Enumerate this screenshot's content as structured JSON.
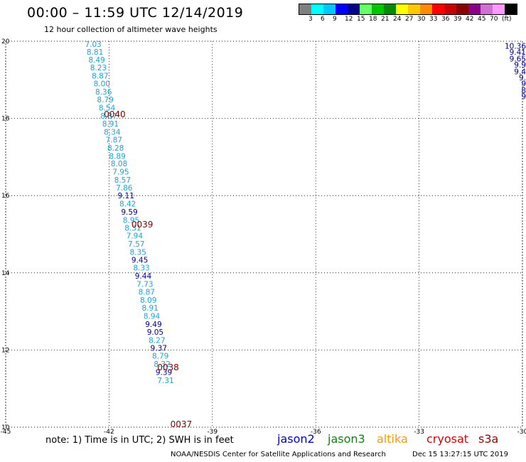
{
  "title": "00:00 – 11:59 UTC 12/14/2019",
  "subtitle": "12 hour collection of altimeter wave heights",
  "colorbar": {
    "colors": [
      "#808080",
      "#00ffff",
      "#00c8ff",
      "#0000ff",
      "#00008b",
      "#66ff66",
      "#00c800",
      "#008c00",
      "#ffff00",
      "#ffc800",
      "#ff8c00",
      "#ff0000",
      "#c80000",
      "#8b0000",
      "#8b008b",
      "#d070d0",
      "#ff99ff",
      "#000000"
    ],
    "labels": [
      "3",
      "6",
      "9",
      "12",
      "15",
      "18",
      "21",
      "24",
      "27",
      "30",
      "33",
      "36",
      "39",
      "42",
      "45",
      "70",
      "(ft)"
    ]
  },
  "map": {
    "lon_ticks": [
      "-45",
      "-42",
      "-39",
      "-36",
      "-33",
      "-30"
    ],
    "lat_ticks": [
      "20",
      "18",
      "16",
      "14",
      "12",
      "10"
    ],
    "lon_range": [
      -45,
      -30
    ],
    "lat_range": [
      10,
      20
    ],
    "light_color": "#1ba3d6",
    "dark_color": "#00008b",
    "time_color": "#800000"
  },
  "track1": [
    {
      "lon": -42.7,
      "lat": 19.93,
      "v": "7.03"
    },
    {
      "lon": -42.65,
      "lat": 19.72,
      "v": "8.81"
    },
    {
      "lon": -42.6,
      "lat": 19.52,
      "v": "8.49"
    },
    {
      "lon": -42.55,
      "lat": 19.32,
      "v": "8.23"
    },
    {
      "lon": -42.5,
      "lat": 19.11,
      "v": "8.87"
    },
    {
      "lon": -42.45,
      "lat": 18.9,
      "v": "8.00"
    },
    {
      "lon": -42.4,
      "lat": 18.69,
      "v": "8.36"
    },
    {
      "lon": -42.35,
      "lat": 18.49,
      "v": "8.79"
    },
    {
      "lon": -42.3,
      "lat": 18.28,
      "v": "8.54"
    },
    {
      "lon": -42.25,
      "lat": 18.07,
      "v": "8.87"
    },
    {
      "lon": -42.2,
      "lat": 17.86,
      "v": "8.91"
    },
    {
      "lon": -42.15,
      "lat": 17.65,
      "v": "8.34"
    },
    {
      "lon": -42.1,
      "lat": 17.45,
      "v": "7.87"
    },
    {
      "lon": -42.05,
      "lat": 17.24,
      "v": "8.28"
    },
    {
      "lon": -42.0,
      "lat": 17.03,
      "v": "8.89"
    },
    {
      "lon": -41.95,
      "lat": 16.83,
      "v": "8.08"
    },
    {
      "lon": -41.9,
      "lat": 16.62,
      "v": "7.95"
    },
    {
      "lon": -41.85,
      "lat": 16.41,
      "v": "8.57"
    },
    {
      "lon": -41.8,
      "lat": 16.21,
      "v": "7.86"
    },
    {
      "lon": -41.75,
      "lat": 16.0,
      "v": "9.11"
    },
    {
      "lon": -41.7,
      "lat": 15.79,
      "v": "8.42"
    },
    {
      "lon": -41.65,
      "lat": 15.58,
      "v": "9.59"
    },
    {
      "lon": -41.6,
      "lat": 15.37,
      "v": "8.95"
    },
    {
      "lon": -41.55,
      "lat": 15.17,
      "v": "8.31"
    },
    {
      "lon": -41.5,
      "lat": 14.96,
      "v": "7.94"
    },
    {
      "lon": -41.45,
      "lat": 14.75,
      "v": "7.57"
    },
    {
      "lon": -41.4,
      "lat": 14.54,
      "v": "8.35"
    },
    {
      "lon": -41.35,
      "lat": 14.34,
      "v": "9.45"
    },
    {
      "lon": -41.3,
      "lat": 14.13,
      "v": "8.33"
    },
    {
      "lon": -41.25,
      "lat": 13.92,
      "v": "9.44"
    },
    {
      "lon": -41.2,
      "lat": 13.71,
      "v": "7.73"
    },
    {
      "lon": -41.15,
      "lat": 13.51,
      "v": "8.87"
    },
    {
      "lon": -41.1,
      "lat": 13.3,
      "v": "8.09"
    },
    {
      "lon": -41.05,
      "lat": 13.09,
      "v": "8.91"
    },
    {
      "lon": -41.0,
      "lat": 12.88,
      "v": "8.94"
    },
    {
      "lon": -40.95,
      "lat": 12.67,
      "v": "9.49"
    },
    {
      "lon": -40.9,
      "lat": 12.47,
      "v": "9.05"
    },
    {
      "lon": -40.85,
      "lat": 12.26,
      "v": "8.27"
    },
    {
      "lon": -40.8,
      "lat": 12.05,
      "v": "9.37"
    },
    {
      "lon": -40.75,
      "lat": 11.85,
      "v": "8.79"
    },
    {
      "lon": -40.7,
      "lat": 11.64,
      "v": "8.32"
    },
    {
      "lon": -40.65,
      "lat": 11.43,
      "v": "9.39"
    },
    {
      "lon": -40.6,
      "lat": 11.22,
      "v": "7.31"
    }
  ],
  "track1_times": [
    {
      "lon": -42.15,
      "lat": 18.1,
      "v": "0040"
    },
    {
      "lon": -41.35,
      "lat": 15.25,
      "v": "0039"
    },
    {
      "lon": -40.6,
      "lat": 11.55,
      "v": "0038"
    },
    {
      "lon": -40.22,
      "lat": 10.07,
      "v": "0037"
    }
  ],
  "track2": [
    {
      "lon": -30.0,
      "lat": 19.88,
      "v": "10.36"
    },
    {
      "lon": -30.0,
      "lat": 19.72,
      "v": "9.41"
    },
    {
      "lon": -30.0,
      "lat": 19.55,
      "v": "9.65"
    },
    {
      "lon": -30.0,
      "lat": 19.39,
      "v": "9.9"
    },
    {
      "lon": -30.0,
      "lat": 19.22,
      "v": "9.4"
    },
    {
      "lon": -30.0,
      "lat": 19.06,
      "v": "9."
    },
    {
      "lon": -30.0,
      "lat": 18.9,
      "v": "9"
    },
    {
      "lon": -30.0,
      "lat": 18.73,
      "v": "8"
    },
    {
      "lon": -30.0,
      "lat": 18.57,
      "v": "9"
    }
  ],
  "note": "note: 1) Time is in UTC; 2) SWH is in feet",
  "legend": [
    {
      "name": "jason2",
      "color": "#0000cc"
    },
    {
      "name": "jason3",
      "color": "#008c00"
    },
    {
      "name": "altika",
      "color": "#ff9900"
    },
    {
      "name": "cryosat",
      "color": "#dd0000"
    },
    {
      "name": "s3a",
      "color": "#990000"
    }
  ],
  "credit": "NOAA/NESDIS Center for Satellite Applications and Research",
  "stamp": "Dec 15 13:27:15 UTC 2019"
}
